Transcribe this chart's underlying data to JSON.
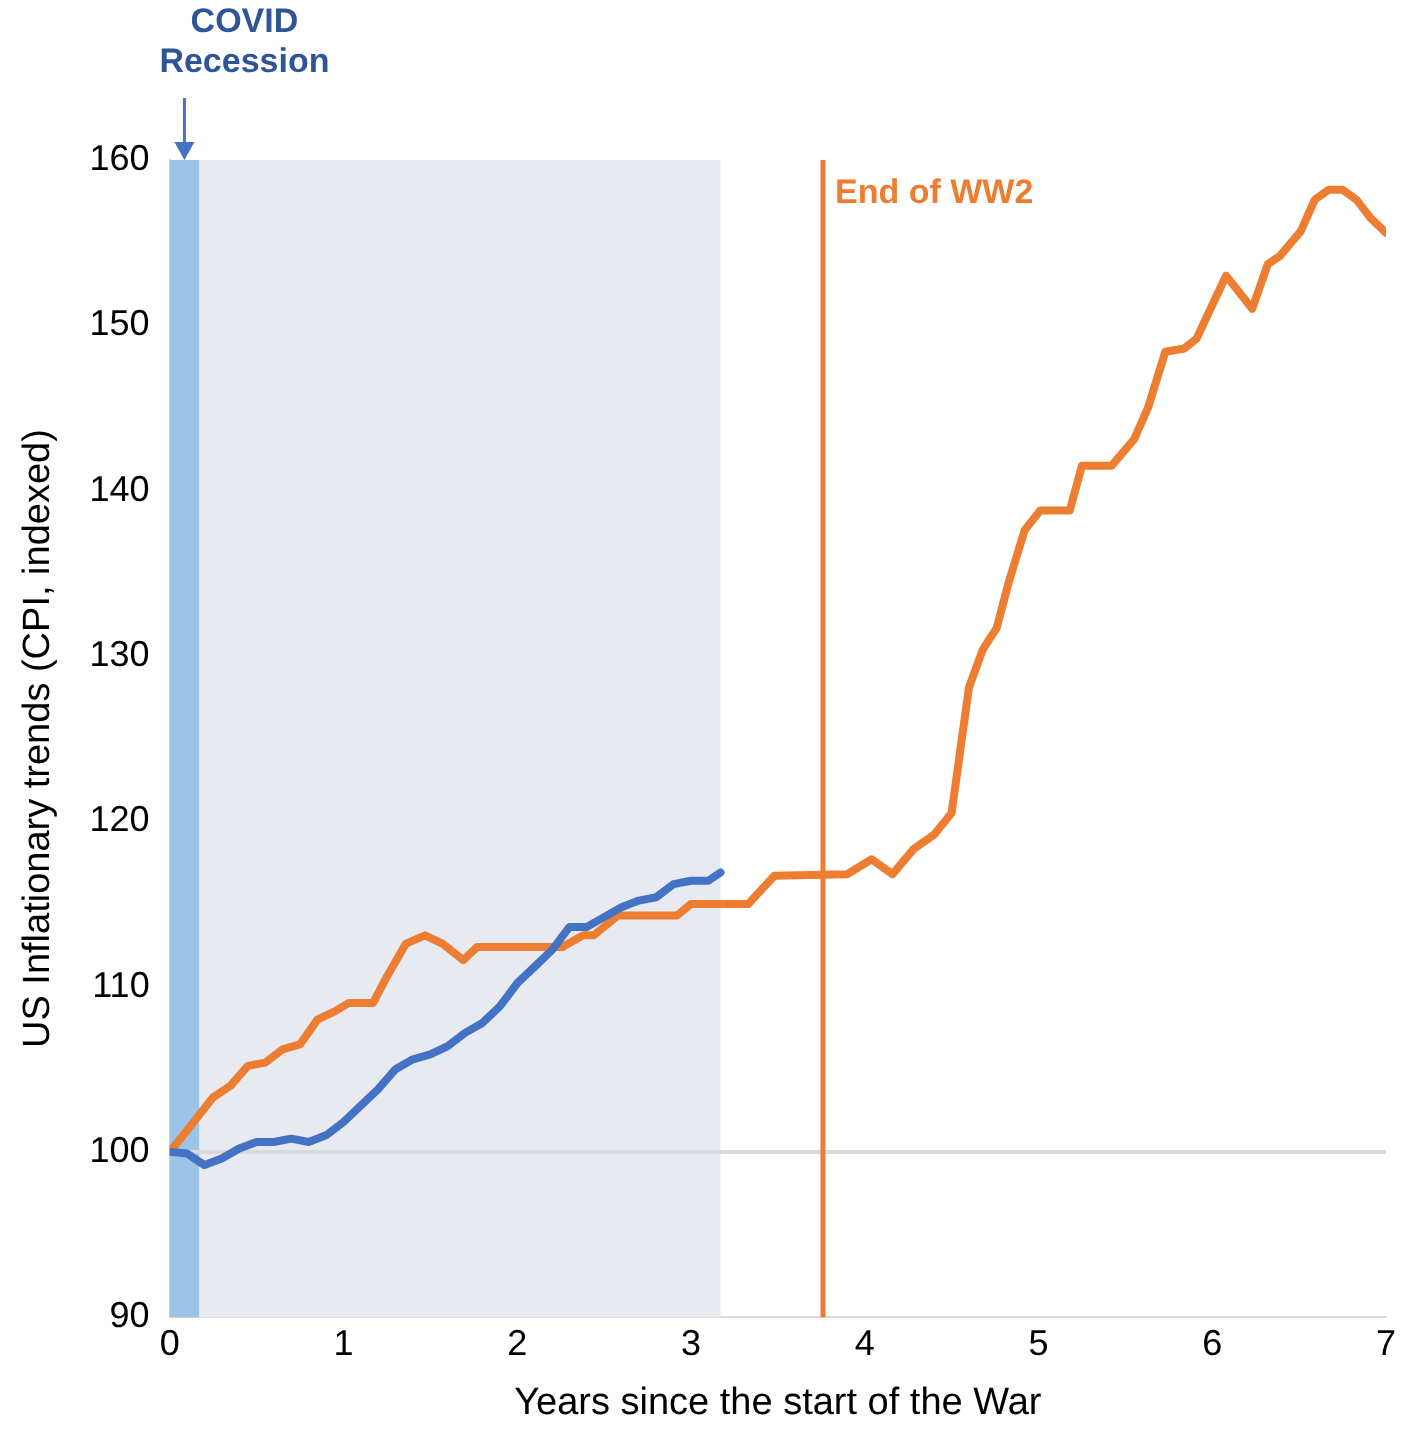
{
  "chart_data": {
    "type": "line",
    "xlabel": "Years since the start of the War",
    "ylabel": "US Inflationary trends (CPI, indexed)",
    "xlim": [
      0,
      7
    ],
    "xticks": [
      0,
      1,
      2,
      3,
      4,
      5,
      6,
      7
    ],
    "ylim": [
      90,
      160
    ],
    "yticks": [
      90,
      100,
      110,
      120,
      130,
      140,
      150,
      160
    ],
    "grid": false,
    "legend": false,
    "marker": "none",
    "line_style": "solid",
    "bands": [
      {
        "axis": "x",
        "from": 0.17,
        "to": 3.17,
        "color": "#e7ebf1"
      },
      {
        "axis": "x",
        "from": 0,
        "to": 0.17,
        "label": "COVID Recession",
        "color": "#9dc3e6"
      }
    ],
    "ref_lines": [
      {
        "axis": "y",
        "value": 100,
        "color": "#d9d9d9"
      },
      {
        "axis": "x",
        "value": 3.76,
        "label": "End of WW2",
        "color": "#ed7d31"
      }
    ],
    "series": [
      {
        "color": "#4472c4",
        "x": [
          0,
          0.1,
          0.2,
          0.3,
          0.4,
          0.5,
          0.6,
          0.7,
          0.8,
          0.9,
          1.0,
          1.1,
          1.2,
          1.3,
          1.4,
          1.5,
          1.6,
          1.7,
          1.8,
          1.9,
          2.0,
          2.1,
          2.2,
          2.3,
          2.4,
          2.5,
          2.6,
          2.7,
          2.8,
          2.9,
          3.0,
          3.1,
          3.17
        ],
        "values": [
          100,
          99.9,
          99.2,
          99.6,
          100.2,
          100.6,
          100.6,
          100.8,
          100.6,
          101,
          101.8,
          102.8,
          103.8,
          105,
          105.6,
          105.9,
          106.4,
          107.2,
          107.8,
          108.8,
          110.2,
          111.2,
          112.2,
          113.6,
          113.6,
          114.2,
          114.8,
          115.2,
          115.4,
          116.2,
          116.4,
          116.4,
          116.9
        ]
      },
      {
        "color": "#ed7d31",
        "x": [
          0,
          0.1,
          0.25,
          0.35,
          0.45,
          0.55,
          0.65,
          0.75,
          0.85,
          0.95,
          1.03,
          1.17,
          1.25,
          1.36,
          1.47,
          1.57,
          1.69,
          1.77,
          2.26,
          2.38,
          2.44,
          2.58,
          2.92,
          3.0,
          3.33,
          3.48,
          3.9,
          4.04,
          4.16,
          4.28,
          4.4,
          4.5,
          4.6,
          4.68,
          4.76,
          4.83,
          4.92,
          5.01,
          5.18,
          5.25,
          5.42,
          5.55,
          5.63,
          5.73,
          5.84,
          5.91,
          5.99,
          6.08,
          6.23,
          6.32,
          6.39,
          6.51,
          6.59,
          6.67,
          6.75,
          6.83,
          6.91,
          7.0
        ],
        "values": [
          100,
          101.3,
          103.3,
          104,
          105.2,
          105.4,
          106.2,
          106.5,
          108,
          108.5,
          109,
          109,
          110.6,
          112.6,
          113.1,
          112.6,
          111.6,
          112.4,
          112.4,
          113.1,
          113.1,
          114.3,
          114.3,
          115,
          115,
          116.7,
          116.8,
          117.7,
          116.8,
          118.3,
          119.2,
          120.5,
          128.1,
          130.4,
          131.7,
          134.5,
          137.6,
          138.8,
          138.8,
          141.5,
          141.5,
          143.1,
          145,
          148.4,
          148.6,
          149.2,
          151,
          153,
          151,
          153.7,
          154.2,
          155.7,
          157.6,
          158.2,
          158.2,
          157.6,
          156.5,
          155.6
        ]
      }
    ]
  }
}
